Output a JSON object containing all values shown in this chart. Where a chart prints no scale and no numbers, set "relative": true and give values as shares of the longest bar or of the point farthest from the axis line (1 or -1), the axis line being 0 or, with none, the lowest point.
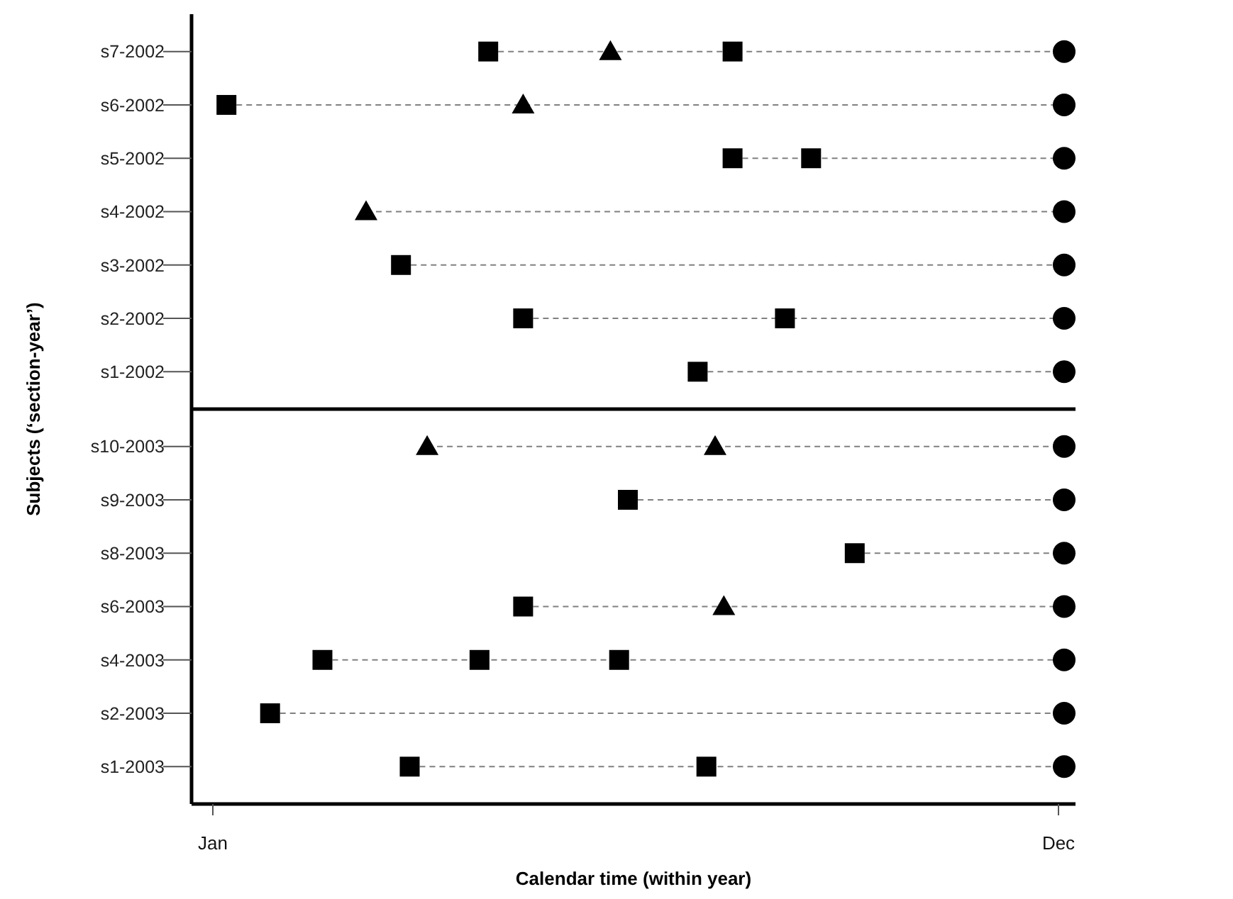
{
  "chart_data": [
    {
      "type": "scatter",
      "orientation": "horizontal",
      "relative": true,
      "ylabel": "Subjects (‘section-year’)",
      "line_style": "dashed",
      "grid": "y",
      "categories": [
        "s7-2002",
        "s6-2002",
        "s5-2002",
        "s4-2002",
        "s3-2002",
        "s2-2002",
        "s1-2002"
      ],
      "series": [
        {
          "marker": "square",
          "color": "#000000",
          "values": [
            0.34,
            0.04,
            0.62,
            null,
            0.24,
            0.38,
            0.58
          ]
        },
        {
          "marker": "square",
          "color": "#000000",
          "values": [
            0.62,
            null,
            0.71,
            null,
            null,
            0.68,
            null
          ]
        },
        {
          "marker": "triangle",
          "color": "#000000",
          "values": [
            0.48,
            0.38,
            null,
            0.2,
            null,
            null,
            null
          ]
        },
        {
          "marker": "circle",
          "color": "#000000",
          "values": [
            1,
            1,
            1,
            1,
            1,
            1,
            1
          ]
        }
      ]
    },
    {
      "type": "scatter",
      "orientation": "horizontal",
      "relative": true,
      "xlabel": "Calendar time (within year)",
      "line_style": "dashed",
      "grid": "y",
      "categories": [
        "s10-2003",
        "s9-2003",
        "s8-2003",
        "s6-2003",
        "s4-2003",
        "s2-2003",
        "s1-2003"
      ],
      "annotations": [
        "Jan",
        "Dec"
      ],
      "series": [
        {
          "marker": "square",
          "color": "#000000",
          "values": [
            null,
            0.5,
            0.76,
            0.38,
            0.15,
            0.09,
            0.25
          ]
        },
        {
          "marker": "square",
          "color": "#000000",
          "values": [
            null,
            null,
            null,
            null,
            0.33,
            null,
            0.59
          ]
        },
        {
          "marker": "square",
          "color": "#000000",
          "values": [
            null,
            null,
            null,
            null,
            0.49,
            null,
            null
          ]
        },
        {
          "marker": "triangle",
          "color": "#000000",
          "values": [
            0.27,
            null,
            null,
            0.61,
            null,
            null,
            null
          ]
        },
        {
          "marker": "triangle",
          "color": "#000000",
          "values": [
            0.6,
            null,
            null,
            null,
            null,
            null,
            null
          ]
        },
        {
          "marker": "circle",
          "color": "#000000",
          "values": [
            1,
            1,
            1,
            1,
            1,
            1,
            1
          ]
        }
      ]
    }
  ]
}
